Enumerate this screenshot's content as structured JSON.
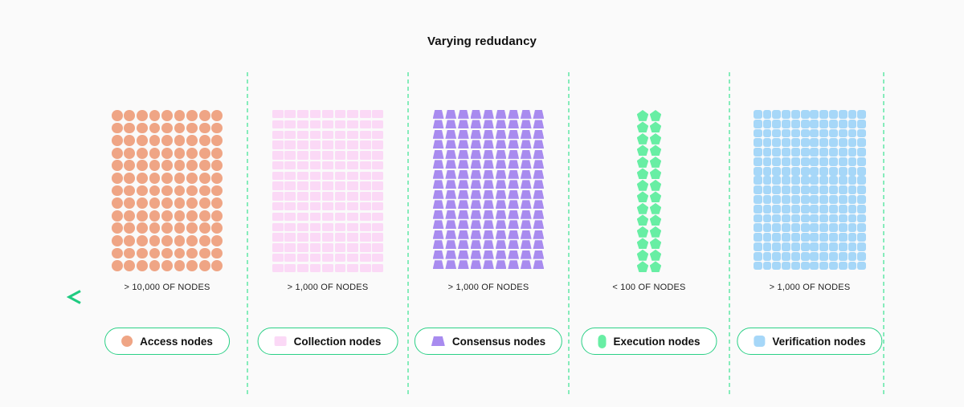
{
  "title": "Varying redudancy",
  "arrow": {
    "direction": "left",
    "color_start": "#1fcb81",
    "color_end": "#0c8a5c"
  },
  "divider_color": "#86ecbb",
  "pill_border_color": "#2bd086",
  "sections": [
    {
      "id": "access",
      "count_label": "> 10,000 OF NODES",
      "legend_label": "Access nodes",
      "shape": "circle",
      "color": "#efa585",
      "cols": 9,
      "rows": 13
    },
    {
      "id": "collection",
      "count_label": "> 1,000 OF NODES",
      "legend_label": "Collection nodes",
      "shape": "rect",
      "color": "#fbd9f6",
      "cols": 9,
      "rows": 16
    },
    {
      "id": "consensus",
      "count_label": "> 1,000 OF NODES",
      "legend_label": "Consensus nodes",
      "shape": "trapezoid",
      "color": "#a88bef",
      "cols": 9,
      "rows": 16
    },
    {
      "id": "execution",
      "count_label": "< 100 OF NODES",
      "legend_label": "Execution nodes",
      "shape": "pentagon",
      "color": "#68eea4",
      "cols": 2,
      "rows": 14
    },
    {
      "id": "verification",
      "count_label": "> 1,000 OF NODES",
      "legend_label": "Verification nodes",
      "shape": "rounded-square",
      "color": "#a6d7f8",
      "cols": 12,
      "rows": 17
    }
  ]
}
